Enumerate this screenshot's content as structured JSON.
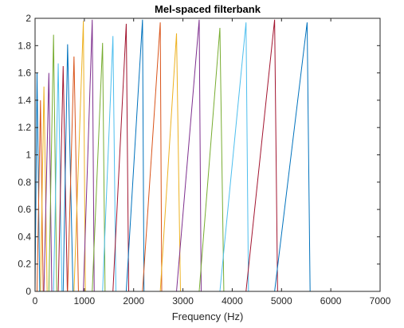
{
  "chart_data": {
    "type": "line",
    "title": "Mel-spaced filterbank",
    "xlabel": "Frequency (Hz)",
    "ylabel": "",
    "xlim": [
      0,
      7000
    ],
    "ylim": [
      0,
      2
    ],
    "xticks": [
      0,
      1000,
      2000,
      3000,
      4000,
      5000,
      6000,
      7000
    ],
    "yticks": [
      0,
      0.2,
      0.4,
      0.6,
      0.8,
      1,
      1.2,
      1.4,
      1.6,
      1.8,
      2
    ],
    "grid": false,
    "legend": "none",
    "colors": [
      "#0072BD",
      "#D95319",
      "#EDB120",
      "#7E2F8E",
      "#77AC30",
      "#4DBEEE",
      "#A2142F"
    ],
    "filters": [
      {
        "start": 0,
        "peak": 40,
        "end": 95,
        "height": 1.6
      },
      {
        "start": 40,
        "peak": 110,
        "end": 165,
        "height": 1.4
      },
      {
        "start": 110,
        "peak": 180,
        "end": 245,
        "height": 1.5
      },
      {
        "start": 180,
        "peak": 280,
        "end": 340,
        "height": 1.6
      },
      {
        "start": 280,
        "peak": 375,
        "end": 440,
        "height": 1.88
      },
      {
        "start": 375,
        "peak": 470,
        "end": 545,
        "height": 1.67
      },
      {
        "start": 470,
        "peak": 570,
        "end": 655,
        "height": 1.65
      },
      {
        "start": 570,
        "peak": 660,
        "end": 770,
        "height": 1.81
      },
      {
        "start": 660,
        "peak": 790,
        "end": 880,
        "height": 1.72
      },
      {
        "start": 790,
        "peak": 980,
        "end": 1020,
        "height": 1.98
      },
      {
        "start": 980,
        "peak": 1160,
        "end": 1200,
        "height": 1.99
      },
      {
        "start": 1160,
        "peak": 1370,
        "end": 1420,
        "height": 1.82
      },
      {
        "start": 1370,
        "peak": 1580,
        "end": 1640,
        "height": 1.87
      },
      {
        "start": 1580,
        "peak": 1850,
        "end": 1900,
        "height": 1.96
      },
      {
        "start": 1850,
        "peak": 2180,
        "end": 2210,
        "height": 1.99
      },
      {
        "start": 2180,
        "peak": 2540,
        "end": 2570,
        "height": 1.97
      },
      {
        "start": 2540,
        "peak": 2870,
        "end": 2950,
        "height": 1.89
      },
      {
        "start": 2870,
        "peak": 3330,
        "end": 3370,
        "height": 1.99
      },
      {
        "start": 3330,
        "peak": 3750,
        "end": 3830,
        "height": 1.93
      },
      {
        "start": 3750,
        "peak": 4280,
        "end": 4330,
        "height": 1.97
      },
      {
        "start": 4280,
        "peak": 4860,
        "end": 4920,
        "height": 1.99
      },
      {
        "start": 4860,
        "peak": 5520,
        "end": 5580,
        "height": 1.97
      },
      {
        "start": 5520,
        "peak": 6250,
        "end": 6260,
        "height": 0.0
      }
    ]
  }
}
